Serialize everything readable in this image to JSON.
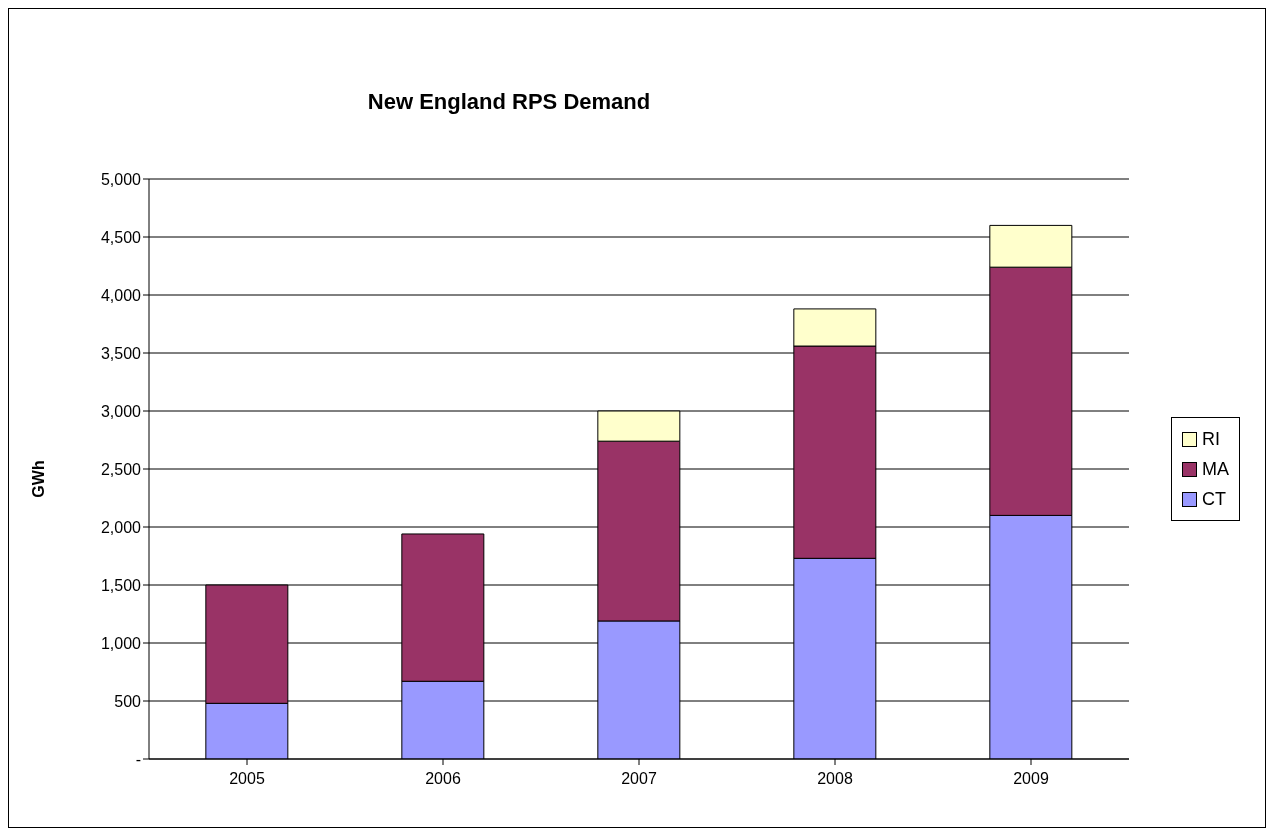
{
  "chart_data": {
    "type": "bar",
    "title": "New England RPS Demand",
    "ylabel": "GWh",
    "categories": [
      "2005",
      "2006",
      "2007",
      "2008",
      "2009"
    ],
    "stacked": true,
    "series": [
      {
        "name": "CT",
        "color": "#9999ff",
        "values": [
          480,
          670,
          1190,
          1730,
          2100
        ]
      },
      {
        "name": "MA",
        "color": "#993366",
        "values": [
          1020,
          1270,
          1550,
          1830,
          2140
        ]
      },
      {
        "name": "RI",
        "color": "#ffffcc",
        "values": [
          null,
          null,
          260,
          320,
          360
        ]
      }
    ],
    "ylim": [
      0,
      5000
    ],
    "yticks": [
      {
        "value": 0,
        "label": "-"
      },
      {
        "value": 500,
        "label": "500"
      },
      {
        "value": 1000,
        "label": "1,000"
      },
      {
        "value": 1500,
        "label": "1,500"
      },
      {
        "value": 2000,
        "label": "2,000"
      },
      {
        "value": 2500,
        "label": "2,500"
      },
      {
        "value": 3000,
        "label": "3,000"
      },
      {
        "value": 3500,
        "label": "3,500"
      },
      {
        "value": 4000,
        "label": "4,000"
      },
      {
        "value": 4500,
        "label": "4,500"
      },
      {
        "value": 5000,
        "label": "5,000"
      }
    ],
    "grid": "y",
    "legend": "right"
  }
}
